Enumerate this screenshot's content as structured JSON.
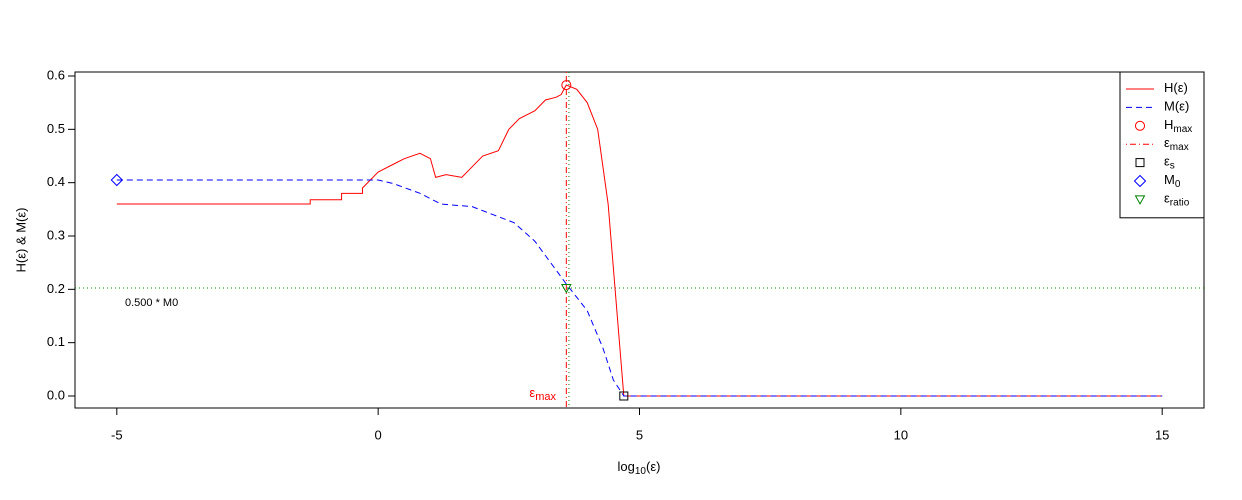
{
  "chart_data": {
    "type": "line",
    "ylabel": "H(ε)  &  M(ε)",
    "xlabel": "log",
    "xlabel_sub": "10",
    "xlabel_tail": "(ε)",
    "xlim": [
      -5.8,
      15.8
    ],
    "xticks": [
      -5,
      0,
      5,
      10,
      15
    ],
    "ylim": [
      -0.0225,
      0.6075
    ],
    "yticks": [
      {
        "value": 0,
        "label": "0.0"
      },
      0.1,
      0.2,
      0.3,
      0.4,
      0.5,
      0.6
    ],
    "series": [
      {
        "name": "H(ε)",
        "kind": "line",
        "color": "#ff0000",
        "dash": "solid",
        "x": [
          -5,
          -1.3,
          -1.3,
          -0.7,
          -0.7,
          -0.3,
          -0.3,
          0,
          0.3,
          0.5,
          0.8,
          1.0,
          1.1,
          1.3,
          1.6,
          1.8,
          2.0,
          2.3,
          2.5,
          2.7,
          3.0,
          3.2,
          3.4,
          3.5,
          3.6,
          3.8,
          4.0,
          4.2,
          4.4,
          4.55,
          4.7,
          15
        ],
        "values": [
          0.36,
          0.36,
          0.368,
          0.368,
          0.38,
          0.38,
          0.39,
          0.42,
          0.435,
          0.445,
          0.455,
          0.445,
          0.41,
          0.415,
          0.41,
          0.43,
          0.45,
          0.46,
          0.5,
          0.52,
          0.535,
          0.555,
          0.56,
          0.565,
          0.583,
          0.575,
          0.55,
          0.5,
          0.36,
          0.18,
          0,
          0
        ]
      },
      {
        "name": "M(ε)",
        "kind": "line",
        "color": "#0000ff",
        "dash": "dashed",
        "x": [
          -5,
          0,
          0.3,
          0.8,
          1.2,
          1.8,
          2.2,
          2.6,
          3.0,
          3.3,
          3.6,
          4.0,
          4.3,
          4.5,
          4.7,
          15
        ],
        "values": [
          0.405,
          0.405,
          0.398,
          0.38,
          0.36,
          0.355,
          0.34,
          0.325,
          0.29,
          0.25,
          0.21,
          0.16,
          0.09,
          0.03,
          0,
          0
        ]
      },
      {
        "name": "H",
        "sub": "max",
        "kind": "point",
        "marker": "circle",
        "color": "#ff0000",
        "x": [
          3.6
        ],
        "values": [
          0.583
        ]
      },
      {
        "name": "ε",
        "sub": "max",
        "kind": "vline",
        "color": "#ff0000",
        "dash": "dotdash",
        "x": [
          3.6
        ]
      },
      {
        "name": "ε",
        "sub": "s",
        "kind": "point",
        "marker": "square",
        "color": "#000000",
        "x": [
          4.7
        ],
        "values": [
          0
        ]
      },
      {
        "name": "M",
        "sub": "0",
        "kind": "point",
        "marker": "diamond",
        "color": "#0000ff",
        "x": [
          -5
        ],
        "values": [
          0.405
        ]
      },
      {
        "name": "ε",
        "sub": "ratio",
        "kind": "point",
        "marker": "triangle",
        "color": "#008000",
        "x": [
          3.6
        ],
        "values": [
          0.2025
        ]
      }
    ],
    "hline": {
      "value": 0.2025,
      "color": "#008000"
    },
    "vline": {
      "x": 3.65,
      "color": "#008000"
    },
    "annotations": [
      {
        "text": "0.500 * M0",
        "color": "#006400"
      },
      {
        "text": "ε",
        "sub": "max",
        "color": "#ff0000"
      }
    ],
    "legend": "topright"
  }
}
